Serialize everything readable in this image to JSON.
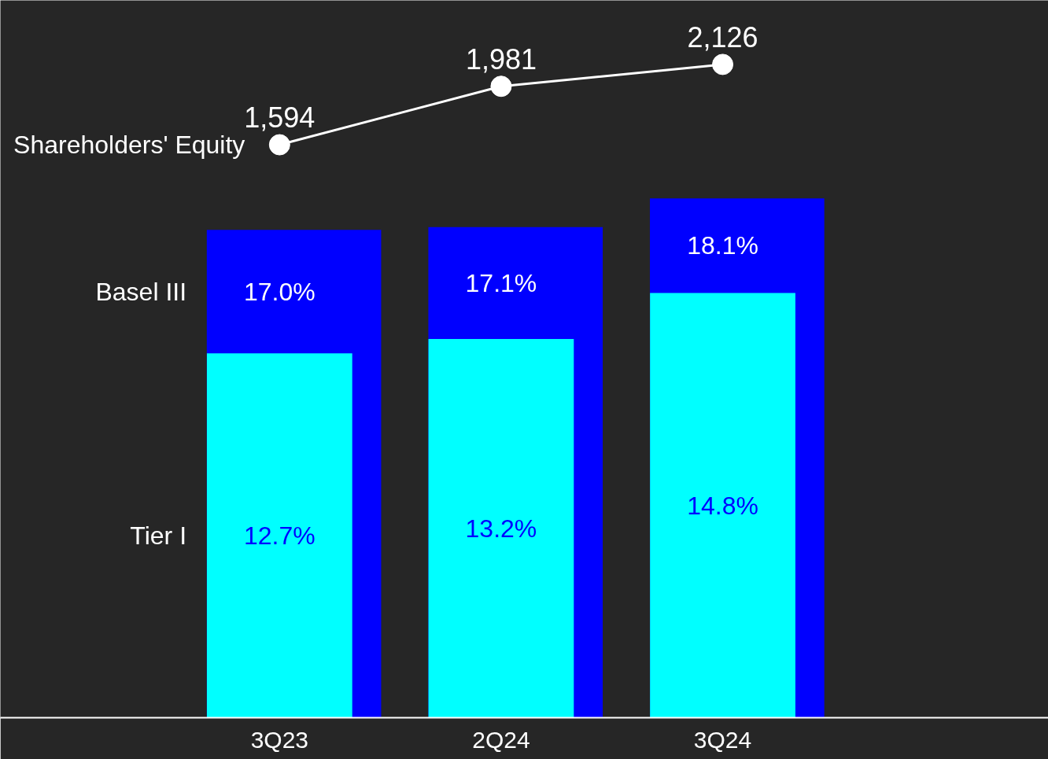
{
  "chart_data": {
    "type": "bar",
    "categories": [
      "3Q23",
      "2Q24",
      "3Q24"
    ],
    "ylim": [
      0,
      25
    ],
    "y2lim": [
      -2200,
      2550
    ],
    "tick_labels": "x",
    "grid": false,
    "marker": "circle",
    "series": [
      {
        "name": "Basel III",
        "color": "#0000ff",
        "values": [
          17.0,
          17.1,
          18.1
        ],
        "value_labels": [
          "17.0%",
          "17.1%",
          "18.1%"
        ]
      },
      {
        "name": "Tier I",
        "color": "#00ffff",
        "values": [
          12.7,
          13.2,
          14.8
        ],
        "value_labels": [
          "12.7%",
          "13.2%",
          "14.8%"
        ]
      },
      {
        "name": "Shareholders' Equity",
        "type": "line",
        "axis": "y2",
        "color": "#ffffff",
        "values": [
          1594,
          1981,
          2126
        ],
        "value_labels": [
          "1,594",
          "1,981",
          "2,126"
        ]
      }
    ]
  }
}
